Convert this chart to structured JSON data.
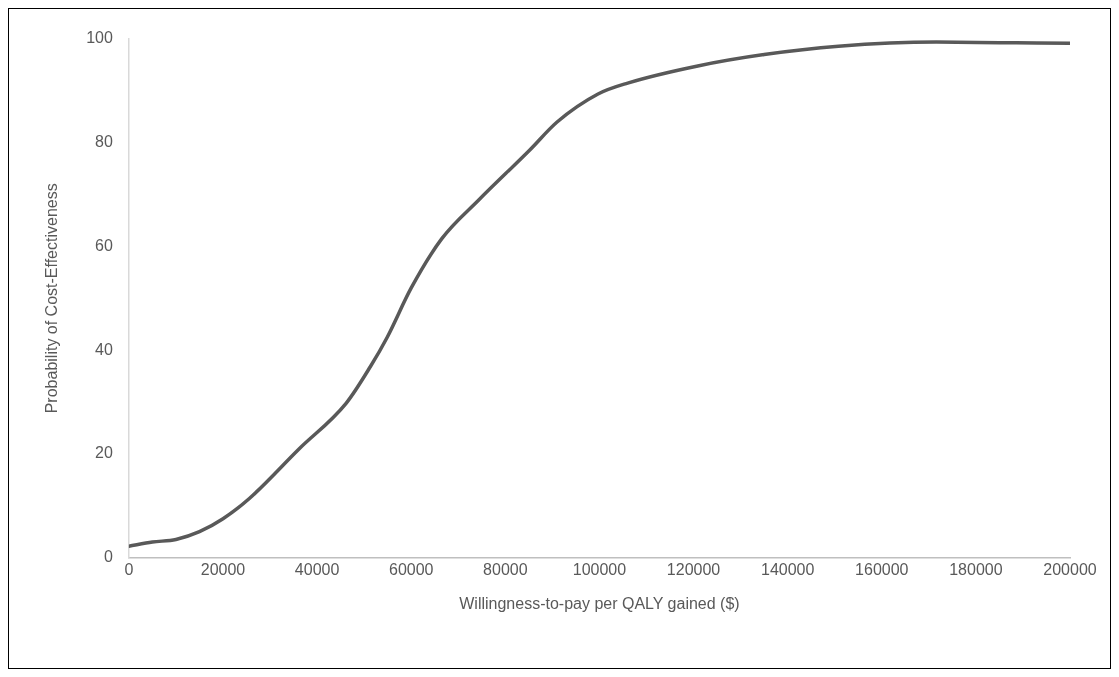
{
  "chart_data": {
    "type": "line",
    "xlabel": "Willingness-to-pay per QALY gained ($)",
    "ylabel": "Probability of Cost-Effectiveness",
    "series": [
      {
        "color": "#595959",
        "x": [
          0,
          5000,
          10000,
          15000,
          20000,
          25600,
          36100,
          46200,
          51300,
          54900,
          60000,
          66500,
          74400,
          85200,
          91000,
          99700,
          106000,
          120900,
          135000,
          150800,
          171600,
          185000,
          200000
        ],
        "values": [
          2.2,
          3,
          3.5,
          5,
          7.5,
          11.4,
          20.9,
          29.8,
          36.8,
          42.5,
          52,
          61.5,
          69,
          78.6,
          84,
          89.4,
          91.5,
          94.8,
          97,
          98.6,
          99.4,
          99.3,
          99.2
        ]
      }
    ],
    "xlim": [
      0,
      200000
    ],
    "xticks": [
      0,
      20000,
      40000,
      60000,
      80000,
      100000,
      120000,
      140000,
      160000,
      180000,
      200000
    ],
    "ylim": [
      0,
      100
    ],
    "yticks": [
      0,
      20,
      40,
      60,
      80,
      100
    ],
    "grid": false,
    "legend": false,
    "marker": "none",
    "line_style": "solid"
  }
}
